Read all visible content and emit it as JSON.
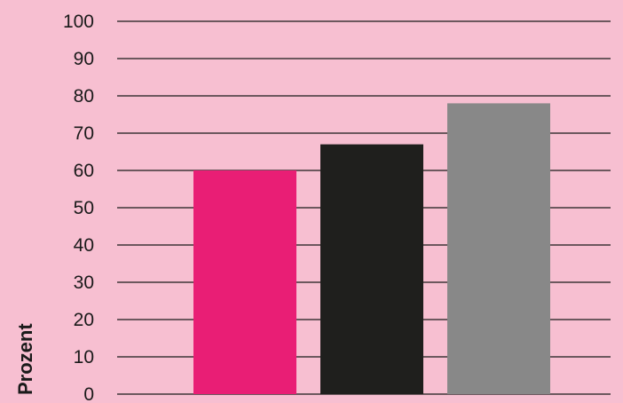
{
  "chart_data": {
    "type": "bar",
    "title": "",
    "xlabel": "",
    "ylabel": "Prozent",
    "ylim": [
      0,
      100
    ],
    "yticks": [
      0,
      10,
      20,
      30,
      40,
      50,
      60,
      70,
      80,
      90,
      100
    ],
    "grid": true,
    "legend": "none",
    "categories": [
      "",
      "",
      ""
    ],
    "values": [
      60,
      67,
      78
    ],
    "colors": [
      "#e91e75",
      "#1f1f1d",
      "#888888"
    ]
  },
  "background_color": "#f7bfd1",
  "gridline_color": "#1a1a1a"
}
